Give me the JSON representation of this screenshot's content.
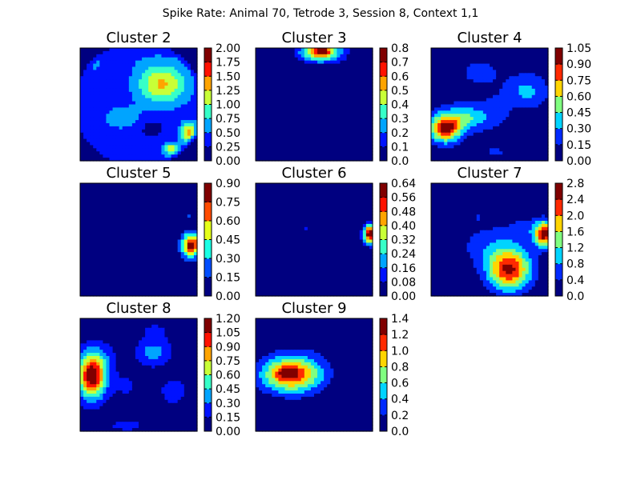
{
  "figure": {
    "suptitle": "Spike Rate: Animal 70, Tetrode 3, Session 8, Context 1,1"
  },
  "chart_data": [
    {
      "type": "heatmap",
      "title": "Cluster 2",
      "colorbar_ticks": [
        "0.00",
        "0.25",
        "0.50",
        "0.75",
        "1.00",
        "1.25",
        "1.50",
        "1.75",
        "2.00"
      ],
      "levels": 8,
      "range": [
        0,
        2.0
      ],
      "background": 0.38,
      "blobs": [
        {
          "x": 0.7,
          "y": 0.32,
          "sx": 0.14,
          "sy": 0.12,
          "a": 0.92
        },
        {
          "x": 0.38,
          "y": 0.62,
          "sx": 0.12,
          "sy": 0.07,
          "a": 0.3
        },
        {
          "x": 0.93,
          "y": 0.75,
          "sx": 0.05,
          "sy": 0.06,
          "a": 0.95
        },
        {
          "x": 0.78,
          "y": 0.9,
          "sx": 0.04,
          "sy": 0.04,
          "a": 0.85
        },
        {
          "x": 0.6,
          "y": 0.7,
          "sx": 0.1,
          "sy": 0.08,
          "a": -0.22
        },
        {
          "x": 0.4,
          "y": 0.1,
          "sx": 0.2,
          "sy": 0.06,
          "a": 0.06
        },
        {
          "x": 0.12,
          "y": 0.15,
          "sx": 0.08,
          "sy": 0.08,
          "a": 0.12
        }
      ],
      "circle_mask": 0.52
    },
    {
      "type": "heatmap",
      "title": "Cluster 3",
      "colorbar_ticks": [
        "0.0",
        "0.1",
        "0.2",
        "0.3",
        "0.4",
        "0.5",
        "0.6",
        "0.7",
        "0.8"
      ],
      "levels": 8,
      "range": [
        0,
        0.8
      ],
      "background": 0.0,
      "blobs": [
        {
          "x": 0.56,
          "y": 0.04,
          "sx": 0.13,
          "sy": 0.06,
          "a": 0.55
        },
        {
          "x": 0.56,
          "y": 0.02,
          "sx": 0.05,
          "sy": 0.03,
          "a": 0.35
        }
      ]
    },
    {
      "type": "heatmap",
      "title": "Cluster 4",
      "colorbar_ticks": [
        "0.00",
        "0.15",
        "0.30",
        "0.45",
        "0.60",
        "0.75",
        "0.90",
        "1.05"
      ],
      "levels": 7,
      "range": [
        0,
        1.05
      ],
      "background": 0.06,
      "blobs": [
        {
          "x": 0.12,
          "y": 0.72,
          "sx": 0.09,
          "sy": 0.08,
          "a": 0.85
        },
        {
          "x": 0.28,
          "y": 0.62,
          "sx": 0.15,
          "sy": 0.08,
          "a": 0.4
        },
        {
          "x": 0.42,
          "y": 0.22,
          "sx": 0.14,
          "sy": 0.1,
          "a": 0.13
        },
        {
          "x": 0.82,
          "y": 0.38,
          "sx": 0.12,
          "sy": 0.1,
          "a": 0.28
        },
        {
          "x": 0.55,
          "y": 0.55,
          "sx": 0.1,
          "sy": 0.1,
          "a": 0.12
        },
        {
          "x": 0.55,
          "y": 0.92,
          "sx": 0.12,
          "sy": 0.05,
          "a": 0.1
        }
      ]
    },
    {
      "type": "heatmap",
      "title": "Cluster 5",
      "colorbar_ticks": [
        "0.00",
        "0.15",
        "0.30",
        "0.45",
        "0.60",
        "0.75",
        "0.90"
      ],
      "levels": 6,
      "range": [
        0,
        0.9
      ],
      "background": 0.0,
      "blobs": [
        {
          "x": 0.95,
          "y": 0.55,
          "sx": 0.06,
          "sy": 0.08,
          "a": 0.82
        },
        {
          "x": 0.92,
          "y": 0.3,
          "sx": 0.02,
          "sy": 0.02,
          "a": 0.2
        },
        {
          "x": 0.35,
          "y": 0.78,
          "sx": 0.015,
          "sy": 0.015,
          "a": 0.18
        }
      ]
    },
    {
      "type": "heatmap",
      "title": "Cluster 6",
      "colorbar_ticks": [
        "0.00",
        "0.08",
        "0.16",
        "0.24",
        "0.32",
        "0.40",
        "0.48",
        "0.56",
        "0.64"
      ],
      "levels": 8,
      "range": [
        0,
        0.64
      ],
      "background": 0.0,
      "blobs": [
        {
          "x": 0.98,
          "y": 0.45,
          "sx": 0.04,
          "sy": 0.06,
          "a": 0.66
        },
        {
          "x": 0.42,
          "y": 0.4,
          "sx": 0.015,
          "sy": 0.02,
          "a": 0.12
        }
      ]
    },
    {
      "type": "heatmap",
      "title": "Cluster 7",
      "colorbar_ticks": [
        "0.0",
        "0.4",
        "0.8",
        "1.2",
        "1.6",
        "2.0",
        "2.4",
        "2.8"
      ],
      "levels": 7,
      "range": [
        0,
        2.8
      ],
      "background": 0.0,
      "blobs": [
        {
          "x": 0.67,
          "y": 0.77,
          "sx": 0.13,
          "sy": 0.13,
          "a": 2.4
        },
        {
          "x": 0.5,
          "y": 0.55,
          "sx": 0.2,
          "sy": 0.15,
          "a": 0.6
        },
        {
          "x": 0.97,
          "y": 0.45,
          "sx": 0.06,
          "sy": 0.08,
          "a": 2.6
        },
        {
          "x": 0.4,
          "y": 0.3,
          "sx": 0.03,
          "sy": 0.03,
          "a": 0.42
        },
        {
          "x": 0.8,
          "y": 0.4,
          "sx": 0.1,
          "sy": 0.08,
          "a": 0.45
        }
      ]
    },
    {
      "type": "heatmap",
      "title": "Cluster 8",
      "colorbar_ticks": [
        "0.00",
        "0.15",
        "0.30",
        "0.45",
        "0.60",
        "0.75",
        "0.90",
        "1.05",
        "1.20"
      ],
      "levels": 8,
      "range": [
        0,
        1.2
      ],
      "background": 0.06,
      "blobs": [
        {
          "x": 0.1,
          "y": 0.52,
          "sx": 0.08,
          "sy": 0.13,
          "a": 1.1
        },
        {
          "x": 0.15,
          "y": 0.35,
          "sx": 0.1,
          "sy": 0.1,
          "a": 0.2
        },
        {
          "x": 0.63,
          "y": 0.3,
          "sx": 0.1,
          "sy": 0.08,
          "a": 0.32
        },
        {
          "x": 0.8,
          "y": 0.65,
          "sx": 0.08,
          "sy": 0.08,
          "a": 0.18
        },
        {
          "x": 0.4,
          "y": 0.95,
          "sx": 0.15,
          "sy": 0.05,
          "a": 0.12
        },
        {
          "x": 0.65,
          "y": 0.1,
          "sx": 0.12,
          "sy": 0.06,
          "a": 0.1
        },
        {
          "x": 0.4,
          "y": 0.6,
          "sx": 0.12,
          "sy": 0.12,
          "a": 0.1
        }
      ]
    },
    {
      "type": "heatmap",
      "title": "Cluster 9",
      "colorbar_ticks": [
        "0.0",
        "0.2",
        "0.4",
        "0.6",
        "0.8",
        "1.0",
        "1.2",
        "1.4"
      ],
      "levels": 7,
      "range": [
        0,
        1.4
      ],
      "background": 0.0,
      "blobs": [
        {
          "x": 0.3,
          "y": 0.5,
          "sx": 0.18,
          "sy": 0.11,
          "a": 1.1
        },
        {
          "x": 0.27,
          "y": 0.48,
          "sx": 0.06,
          "sy": 0.04,
          "a": 0.32
        },
        {
          "x": 0.4,
          "y": 0.4,
          "sx": 0.22,
          "sy": 0.2,
          "a": 0.12
        }
      ]
    }
  ]
}
